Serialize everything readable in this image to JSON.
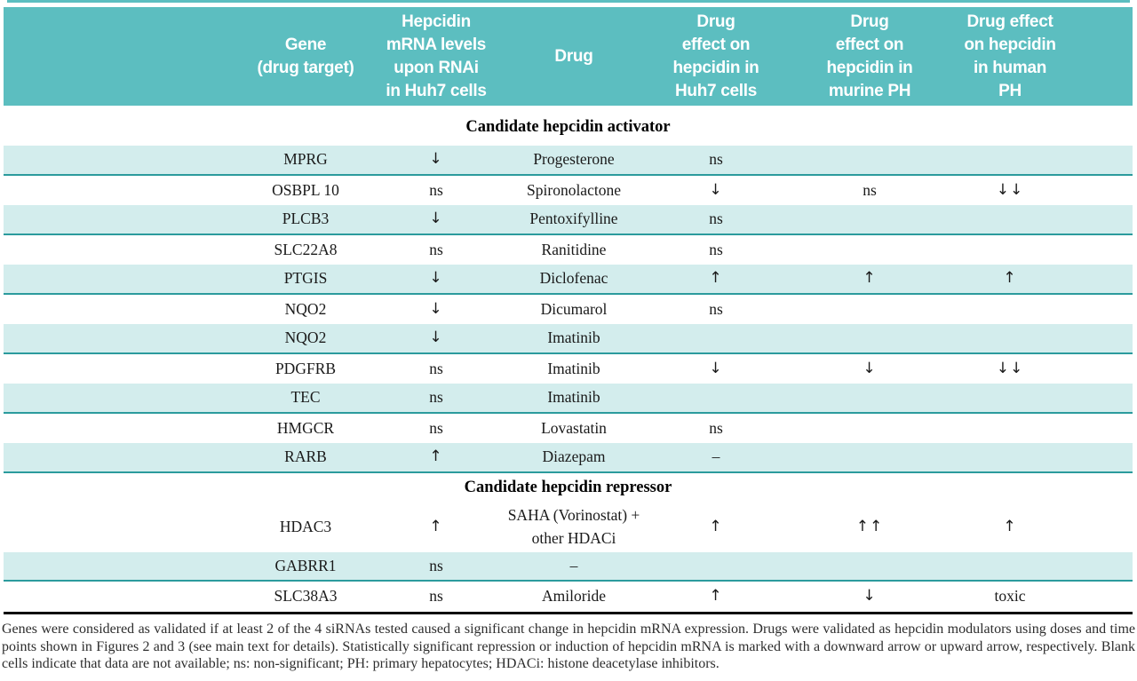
{
  "colors": {
    "header_teal": "#5cbec0",
    "row_band_teal": "#d3eded",
    "row_border_teal": "#2b9b9d",
    "bottom_rule_black": "#0a0a0a",
    "header_text": "#ffffff",
    "body_text": "#1a1a1a"
  },
  "table": {
    "columns": [
      {
        "id": "gene",
        "label": "Gene\n(drug target)"
      },
      {
        "id": "rnai",
        "label": "Hepcidin\nmRNA levels\nupon RNAi\nin Huh7 cells"
      },
      {
        "id": "drug",
        "label": "Drug"
      },
      {
        "id": "huh7",
        "label": "Drug\neffect on\nhepcidin in\nHuh7 cells"
      },
      {
        "id": "murine",
        "label": "Drug\neffect on\nhepcidin in\nmurine PH"
      },
      {
        "id": "human",
        "label": "Drug effect\non hepcidin\nin human\nPH"
      }
    ],
    "sections": [
      {
        "title": "Candidate hepcidin activator",
        "rows": [
          {
            "gene": "MPRG",
            "rnai": "↓",
            "drug": "Progesterone",
            "huh7": "ns",
            "murine": "",
            "human": "",
            "shaded": true,
            "tall": false
          },
          {
            "gene": "OSBPL 10",
            "rnai": "ns",
            "drug": "Spironolactone",
            "huh7": "↓",
            "murine": "ns",
            "human": "↓↓",
            "shaded": false,
            "tall": false
          },
          {
            "gene": "PLCB3",
            "rnai": "↓",
            "drug": "Pentoxifylline",
            "huh7": "ns",
            "murine": "",
            "human": "",
            "shaded": true,
            "tall": false
          },
          {
            "gene": "SLC22A8",
            "rnai": "ns",
            "drug": "Ranitidine",
            "huh7": "ns",
            "murine": "",
            "human": "",
            "shaded": false,
            "tall": false
          },
          {
            "gene": "PTGIS",
            "rnai": "↓",
            "drug": "Diclofenac",
            "huh7": "↑",
            "murine": "↑",
            "human": "↑",
            "shaded": true,
            "tall": false
          },
          {
            "gene": "NQO2",
            "rnai": "↓",
            "drug": "Dicumarol",
            "huh7": "ns",
            "murine": "",
            "human": "",
            "shaded": false,
            "tall": false
          },
          {
            "gene": "NQO2",
            "rnai": "↓",
            "drug": "Imatinib",
            "huh7": "",
            "murine": "",
            "human": "",
            "shaded": true,
            "tall": false
          },
          {
            "gene": "PDGFRB",
            "rnai": "ns",
            "drug": "Imatinib",
            "huh7": "↓",
            "murine": "↓",
            "human": "↓↓",
            "shaded": false,
            "tall": false
          },
          {
            "gene": "TEC",
            "rnai": "ns",
            "drug": "Imatinib",
            "huh7": "",
            "murine": "",
            "human": "",
            "shaded": true,
            "tall": false
          },
          {
            "gene": "HMGCR",
            "rnai": "ns",
            "drug": "Lovastatin",
            "huh7": "ns",
            "murine": "",
            "human": "",
            "shaded": false,
            "tall": false
          },
          {
            "gene": "RARB",
            "rnai": "↑",
            "drug": "Diazepam",
            "huh7": "–",
            "murine": "",
            "human": "",
            "shaded": true,
            "tall": false
          }
        ]
      },
      {
        "title": "Candidate hepcidin repressor",
        "rows": [
          {
            "gene": "HDAC3",
            "rnai": "↑",
            "drug": "SAHA (Vorinostat) +\nother HDACi",
            "huh7": "↑",
            "murine": "↑↑",
            "human": "↑",
            "shaded": false,
            "tall": true
          },
          {
            "gene": "GABRR1",
            "rnai": "ns",
            "drug": "–",
            "huh7": "",
            "murine": "",
            "human": "",
            "shaded": true,
            "tall": false
          },
          {
            "gene": "SLC38A3",
            "rnai": "ns",
            "drug": "Amiloride",
            "huh7": "↑",
            "murine": "↓",
            "human": "toxic",
            "shaded": false,
            "tall": false
          }
        ]
      }
    ]
  },
  "footnote": "Genes were considered as validated if at least 2 of the 4 siRNAs tested caused a significant change in hepcidin mRNA expression.  Drugs were validated as hepcidin modulators using doses and time points shown in Figures 2 and 3 (see main text for details). Statistically significant repression or induction of hepcidin mRNA is marked with a downward arrow or upward arrow, respectively. Blank cells indicate that data are not available; ns: non-significant; PH: primary hepatocytes; HDACi: histone deacetylase inhibitors."
}
